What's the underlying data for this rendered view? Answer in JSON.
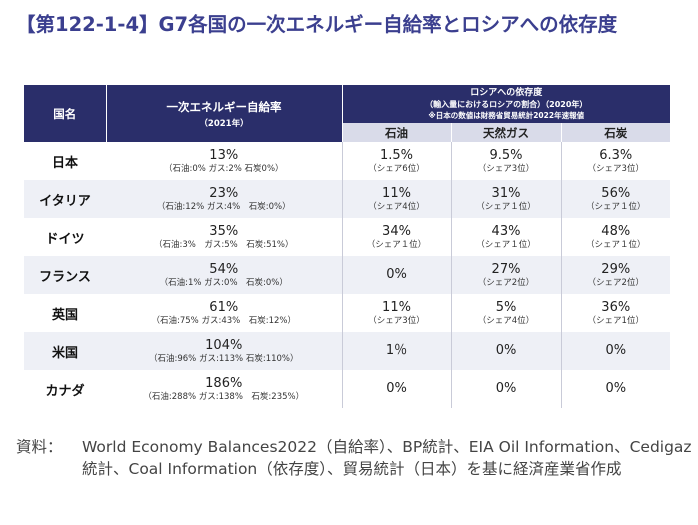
{
  "title": "【第122-1-4】G7各国の一次エネルギー自給率とロシアへの依存度",
  "header": {
    "country_col": "国名",
    "rate_col": "一次エネルギー自給率",
    "rate_col_year": "（2021年）",
    "dep_col_line1": "ロシアへの依存度",
    "dep_col_line2": "（輸入量におけるロシアの割合）（2020年）",
    "dep_col_line3": "※日本の数値は財務省貿易統計2022年速報値",
    "sub_oil": "石油",
    "sub_gas": "天然ガス",
    "sub_coal": "石炭"
  },
  "rows": [
    {
      "country": "日本",
      "rate": "13%",
      "breakdown": "（石油:0% ガス:2% 石炭0%）",
      "oil": "1.5%",
      "oil_rank": "（シェア6位）",
      "gas": "9.5%",
      "gas_rank": "（シェア3位）",
      "coal": "6.3%",
      "coal_rank": "（シェア3位）"
    },
    {
      "country": "イタリア",
      "rate": "23%",
      "breakdown": "（石油:12% ガス:4%　石炭:0%）",
      "oil": "11%",
      "oil_rank": "（シェア4位）",
      "gas": "31%",
      "gas_rank": "（シェア１位）",
      "coal": "56%",
      "coal_rank": "（シェア１位）"
    },
    {
      "country": "ドイツ",
      "rate": "35%",
      "breakdown": "（石油:3%　ガス:5%　石炭:51%）",
      "oil": "34%",
      "oil_rank": "（シェア１位）",
      "gas": "43%",
      "gas_rank": "（シェア１位）",
      "coal": "48%",
      "coal_rank": "（シェア１位）"
    },
    {
      "country": "フランス",
      "rate": "54%",
      "breakdown": "（石油:1% ガス:0%　石炭:0%）",
      "oil": "0%",
      "oil_rank": "",
      "gas": "27%",
      "gas_rank": "（シェア2位）",
      "coal": "29%",
      "coal_rank": "（シェア2位）"
    },
    {
      "country": "英国",
      "rate": "61%",
      "breakdown": "（石油:75% ガス:43%　石炭:12%）",
      "oil": "11%",
      "oil_rank": "（シェア3位）",
      "gas": "5%",
      "gas_rank": "（シェア4位）",
      "coal": "36%",
      "coal_rank": "（シェア1位）"
    },
    {
      "country": "米国",
      "rate": "104%",
      "breakdown": "（石油:96% ガス:113% 石炭:110%）",
      "oil": "1％",
      "oil_rank": "",
      "gas": "0%",
      "gas_rank": "",
      "coal": "0%",
      "coal_rank": ""
    },
    {
      "country": "カナダ",
      "rate": "186%",
      "breakdown": "（石油:288% ガス:138%　石炭:235%）",
      "oil": "0%",
      "oil_rank": "",
      "gas": "0%",
      "gas_rank": "",
      "coal": "0%",
      "coal_rank": ""
    }
  ],
  "source": {
    "label": "資料：",
    "text": "World Economy Balances2022（自給率）、BP統計、EIA Oil Information、Cedigaz統計、Coal Information（依存度）、貿易統計（日本）を基に経済産業省作成"
  }
}
